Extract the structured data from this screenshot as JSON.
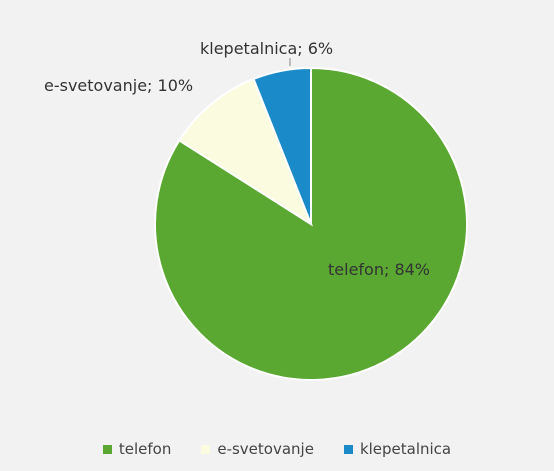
{
  "chart_data": {
    "type": "pie",
    "title": "",
    "categories": [
      "telefon",
      "e-svetovanje",
      "klepetalnica"
    ],
    "values": [
      84,
      10,
      6
    ],
    "colors": [
      "#5aa832",
      "#fbfbdf",
      "#1a8bc8"
    ],
    "data_labels": [
      "telefon; 84%",
      "e-svetovanje; 10%",
      "klepetalnica; 6%"
    ],
    "legend_position": "bottom",
    "start_angle_deg": 0,
    "direction": "clockwise"
  },
  "legend": {
    "items": [
      {
        "label": "telefon",
        "color": "#5aa832"
      },
      {
        "label": "e-svetovanje",
        "color": "#fbfbdf"
      },
      {
        "label": "klepetalnica",
        "color": "#1a8bc8"
      }
    ]
  }
}
